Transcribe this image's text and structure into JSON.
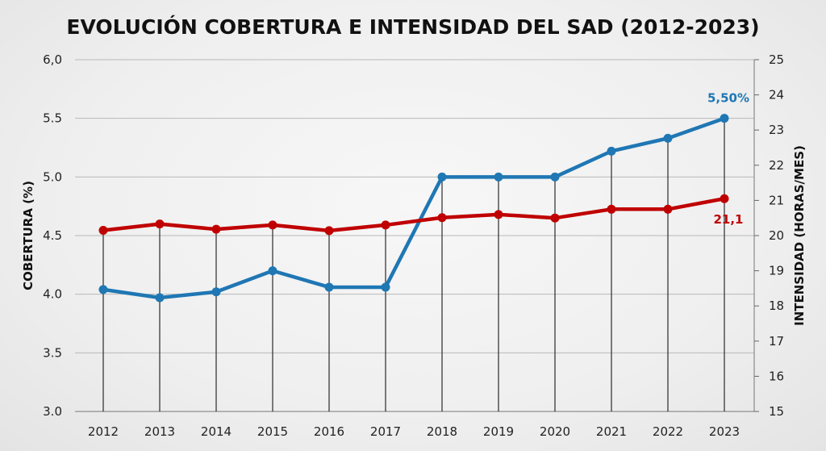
{
  "chart_data": {
    "type": "line",
    "title": "EVOLUCIÓN COBERTURA E INTENSIDAD DEL SAD (2012-2023)",
    "categories": [
      "2012",
      "2013",
      "2014",
      "2015",
      "2016",
      "2017",
      "2018",
      "2019",
      "2020",
      "2021",
      "2022",
      "2023"
    ],
    "y_left": {
      "label": "COBERTURA (%)",
      "range": [
        3.0,
        6.0
      ],
      "ticks": [
        "3.0",
        "3.5",
        "4.0",
        "4.5",
        "5.0",
        "5.5",
        "6,0"
      ]
    },
    "y_right": {
      "label": "INTENSIDAD (HORAS/MES)",
      "range": [
        15,
        25
      ],
      "ticks": [
        "15",
        "16",
        "17",
        "18",
        "19",
        "20",
        "21",
        "22",
        "23",
        "24",
        "25"
      ]
    },
    "grid": true,
    "series": [
      {
        "axis": "left",
        "color": "#1f77b4",
        "values": [
          4.04,
          3.97,
          4.02,
          4.2,
          4.06,
          4.06,
          5.0,
          5.0,
          5.0,
          5.22,
          5.33,
          5.5
        ],
        "end_label": "5,50%"
      },
      {
        "axis": "right",
        "color": "#c00000",
        "values": [
          20.15,
          20.33,
          20.18,
          20.3,
          20.14,
          20.3,
          20.51,
          20.6,
          20.5,
          20.75,
          20.75,
          21.05
        ],
        "end_label": "21,1"
      }
    ]
  }
}
